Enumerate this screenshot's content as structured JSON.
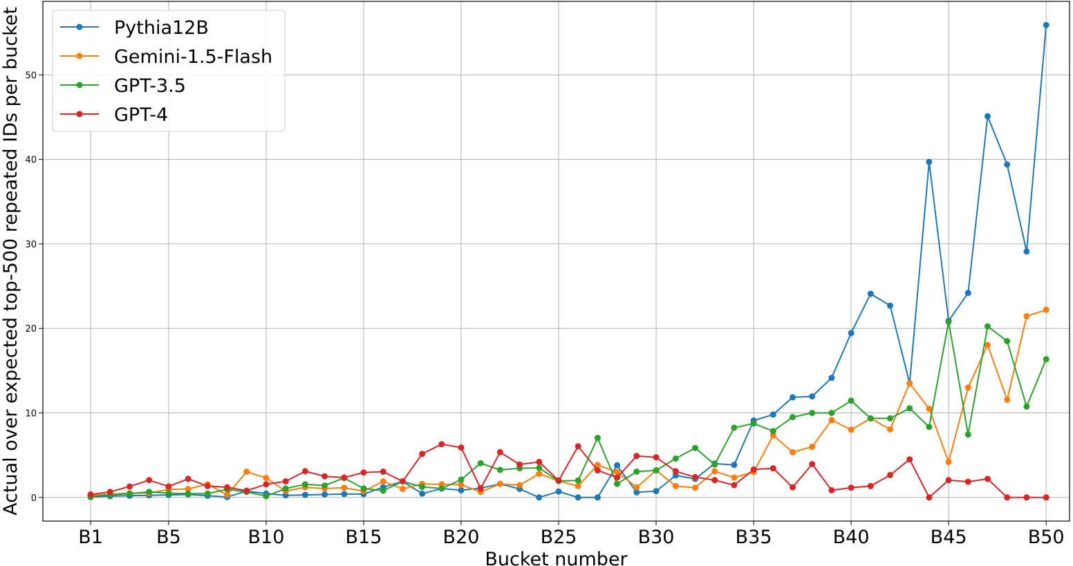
{
  "chart_data": {
    "type": "line",
    "xlabel": "Bucket number",
    "ylabel": "Actual over expected top-500 repeated IDs per bucket",
    "x": [
      1,
      2,
      3,
      4,
      5,
      6,
      7,
      8,
      9,
      10,
      11,
      12,
      13,
      14,
      15,
      16,
      17,
      18,
      19,
      20,
      21,
      22,
      23,
      24,
      25,
      26,
      27,
      28,
      29,
      30,
      31,
      32,
      33,
      34,
      35,
      36,
      37,
      38,
      39,
      40,
      41,
      42,
      43,
      44,
      45,
      46,
      47,
      48,
      49,
      50
    ],
    "xticks": [
      {
        "value": 1,
        "label": "B1"
      },
      {
        "value": 5,
        "label": "B5"
      },
      {
        "value": 10,
        "label": "B10"
      },
      {
        "value": 15,
        "label": "B15"
      },
      {
        "value": 20,
        "label": "B20"
      },
      {
        "value": 25,
        "label": "B25"
      },
      {
        "value": 30,
        "label": "B30"
      },
      {
        "value": 35,
        "label": "B35"
      },
      {
        "value": 40,
        "label": "B40"
      },
      {
        "value": 45,
        "label": "B45"
      },
      {
        "value": 50,
        "label": "B50"
      }
    ],
    "yticks": [
      0,
      10,
      20,
      30,
      40,
      50
    ],
    "xlim": [
      -1.45,
      51.2
    ],
    "ylim": [
      -2.8,
      58.7
    ],
    "grid": true,
    "legend_position": "top-left",
    "series": [
      {
        "name": "Pythia12B",
        "color": "#1f77b4",
        "values": [
          0.05,
          0.15,
          0.2,
          0.25,
          0.3,
          0.35,
          0.2,
          0.05,
          0.75,
          0.45,
          0.25,
          0.3,
          0.35,
          0.4,
          0.4,
          1.2,
          1.9,
          0.45,
          1.05,
          0.85,
          1.1,
          1.6,
          1.0,
          0.0,
          0.7,
          0.0,
          0.0,
          3.8,
          0.6,
          0.75,
          2.6,
          2.2,
          4.0,
          3.85,
          9.1,
          9.8,
          11.85,
          11.95,
          14.15,
          19.45,
          24.1,
          22.7,
          13.5,
          39.7,
          20.9,
          24.2,
          45.1,
          39.4,
          29.1,
          55.9
        ]
      },
      {
        "name": "Gemini-1.5-Flash",
        "color": "#ff7f0e",
        "values": [
          0.2,
          0.4,
          0.5,
          0.5,
          0.95,
          1.0,
          1.55,
          0.3,
          3.05,
          2.3,
          0.75,
          1.2,
          1.05,
          1.15,
          0.75,
          1.9,
          1.0,
          1.6,
          1.55,
          1.5,
          0.65,
          1.6,
          1.45,
          2.8,
          1.95,
          1.35,
          3.85,
          3.0,
          1.2,
          3.2,
          1.35,
          1.15,
          3.1,
          2.35,
          3.0,
          7.35,
          5.35,
          6.0,
          9.15,
          8.0,
          9.35,
          8.05,
          13.5,
          10.5,
          4.2,
          13.0,
          18.05,
          11.55,
          21.45,
          22.2
        ]
      },
      {
        "name": "GPT-3.5",
        "color": "#2ca02c",
        "values": [
          0.1,
          0.3,
          0.45,
          0.65,
          0.5,
          0.45,
          0.45,
          0.95,
          0.65,
          0.15,
          1.05,
          1.55,
          1.4,
          2.3,
          1.05,
          0.8,
          1.9,
          1.25,
          1.05,
          2.1,
          4.05,
          3.25,
          3.45,
          3.5,
          1.95,
          2.0,
          7.05,
          1.6,
          3.05,
          3.2,
          4.6,
          5.85,
          3.9,
          8.25,
          8.75,
          7.85,
          9.5,
          10.0,
          10.0,
          11.45,
          9.35,
          9.35,
          10.55,
          8.35,
          20.8,
          7.45,
          20.25,
          18.5,
          10.75,
          16.35
        ]
      },
      {
        "name": "GPT-4",
        "color": "#d62728",
        "values": [
          0.35,
          0.65,
          1.3,
          2.05,
          1.3,
          2.2,
          1.35,
          1.2,
          0.8,
          1.55,
          1.9,
          3.1,
          2.5,
          2.35,
          2.95,
          3.05,
          1.9,
          5.15,
          6.3,
          5.9,
          1.05,
          5.35,
          3.9,
          4.2,
          2.0,
          6.05,
          3.2,
          2.35,
          4.9,
          4.75,
          3.1,
          2.4,
          2.05,
          1.45,
          3.3,
          3.45,
          1.2,
          3.95,
          0.85,
          1.15,
          1.35,
          2.65,
          4.5,
          0.0,
          2.05,
          1.85,
          2.2,
          0.0,
          0.0,
          0.0
        ]
      }
    ]
  }
}
